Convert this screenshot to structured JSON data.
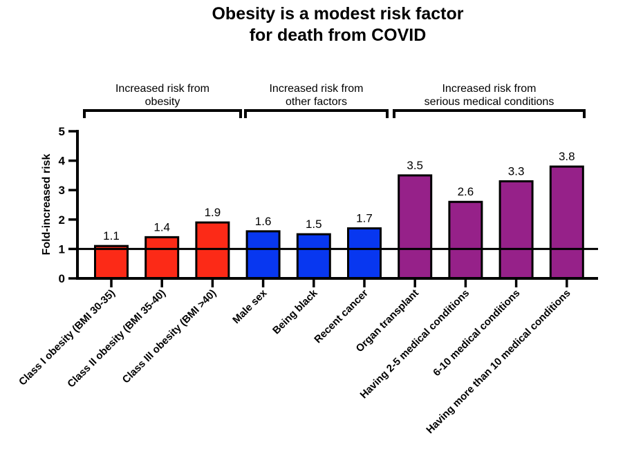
{
  "chart_data": {
    "type": "bar",
    "title": "Obesity is a modest risk factor for death from COVID",
    "title_lines": [
      "Obesity is a modest risk factor",
      "for death from COVID"
    ],
    "ylabel": "Fold-increased risk",
    "xlabel": "",
    "ylim": [
      0,
      5
    ],
    "yticks": [
      0,
      1,
      2,
      3,
      4,
      5
    ],
    "reference_line_y": 1,
    "grid": false,
    "legend_position": "none",
    "value_labels_shown": true,
    "categories": [
      "Class I obesity (BMI 30-35)",
      "Class II obesity (BMI 35-40)",
      "Class III obesity (BMI >40)",
      "Male sex",
      "Being black",
      "Recent cancer",
      "Organ transplant",
      "Having 2-5 medical conditions",
      "6-10 medical conditions",
      "Having more than 10 medical conditions"
    ],
    "values": [
      1.1,
      1.4,
      1.9,
      1.6,
      1.5,
      1.7,
      3.5,
      2.6,
      3.3,
      3.8
    ],
    "groups": [
      {
        "label": "Increased risk from obesity",
        "label_lines": [
          "Increased risk from",
          "obesity"
        ],
        "color": "#fc2a17",
        "bars": [
          {
            "category": "Class I obesity (BMI 30-35)",
            "value": 1.1
          },
          {
            "category": "Class II obesity (BMI 35-40)",
            "value": 1.4
          },
          {
            "category": "Class III obesity (BMI >40)",
            "value": 1.9
          }
        ]
      },
      {
        "label": "Increased risk from other factors",
        "label_lines": [
          "Increased risk from",
          "other factors"
        ],
        "color": "#0837f0",
        "bars": [
          {
            "category": "Male sex",
            "value": 1.6
          },
          {
            "category": "Being black",
            "value": 1.5
          },
          {
            "category": "Recent cancer",
            "value": 1.7
          }
        ]
      },
      {
        "label": "Increased risk from serious medical conditions",
        "label_lines": [
          "Increased risk from",
          "serious medical conditions"
        ],
        "color": "#962189",
        "bars": [
          {
            "category": "Organ transplant",
            "value": 3.5
          },
          {
            "category": "Having 2-5 medical conditions",
            "value": 2.6
          },
          {
            "category": "6-10 medical conditions",
            "value": 3.3
          },
          {
            "category": "Having more than 10 medical conditions",
            "value": 3.8
          }
        ]
      }
    ]
  },
  "colors": {
    "background": "#ffffff",
    "axis": "#000000",
    "text": "#000000",
    "obesity_bars": "#fc2a17",
    "other_factors_bars": "#0837f0",
    "medical_conditions_bars": "#962189"
  }
}
